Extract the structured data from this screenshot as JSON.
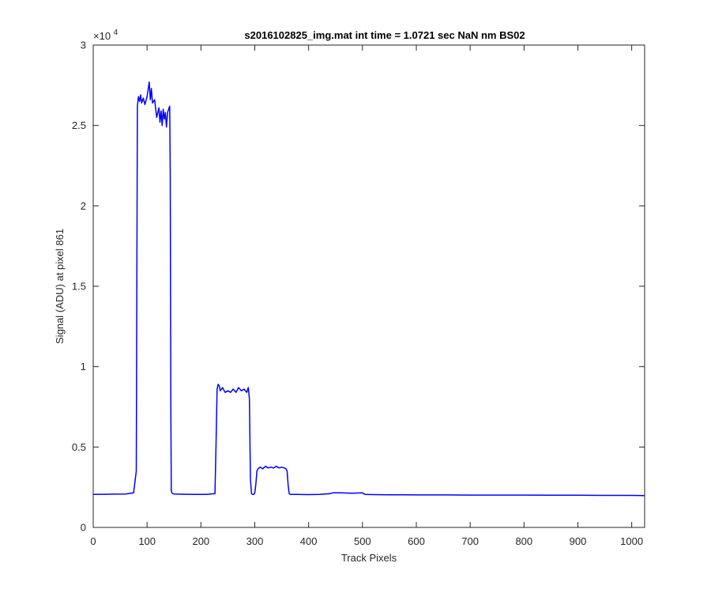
{
  "chart_data": {
    "type": "line",
    "title": "s2016102825_img.mat int time = 1.0721 sec  NaN nm BS02",
    "xlabel": "Track Pixels",
    "ylabel": "Signal (ADU) at pixel 861",
    "exponent_label": "×10",
    "exponent_power": "4",
    "xlim": [
      0,
      1024
    ],
    "ylim": [
      0,
      30000
    ],
    "x_ticks": [
      0,
      100,
      200,
      300,
      400,
      500,
      600,
      700,
      800,
      900,
      1000
    ],
    "x_tick_labels": [
      "0",
      "100",
      "200",
      "300",
      "400",
      "500",
      "600",
      "700",
      "800",
      "900",
      "1000"
    ],
    "y_ticks": [
      0,
      5000,
      10000,
      15000,
      20000,
      25000,
      30000
    ],
    "y_tick_labels": [
      "0",
      "0.5",
      "1",
      "1.5",
      "2",
      "2.5",
      "3"
    ],
    "grid": false,
    "line_color": "#0000ff",
    "series": [
      {
        "x": [
          0,
          20,
          40,
          60,
          75,
          80,
          82,
          84,
          86,
          88,
          90,
          93,
          96,
          100,
          104,
          106,
          108,
          110,
          114,
          118,
          122,
          124,
          126,
          128,
          130,
          132,
          134,
          136,
          138,
          140,
          142,
          143,
          144,
          145,
          146,
          148,
          150,
          170,
          190,
          210,
          226,
          228,
          230,
          232,
          234,
          236,
          240,
          245,
          250,
          255,
          260,
          265,
          270,
          275,
          280,
          285,
          288,
          290,
          292,
          294,
          296,
          298,
          300,
          302,
          304,
          306,
          308,
          310,
          315,
          320,
          325,
          330,
          335,
          340,
          345,
          350,
          355,
          358,
          360,
          362,
          364,
          366,
          370,
          380,
          400,
          420,
          440,
          445,
          460,
          480,
          500,
          505,
          520,
          550,
          600,
          650,
          700,
          750,
          800,
          850,
          900,
          950,
          1000,
          1024
        ],
        "y": [
          2050,
          2060,
          2070,
          2080,
          2150,
          3500,
          26200,
          26800,
          26500,
          26900,
          26400,
          26700,
          26300,
          26800,
          27700,
          26600,
          27300,
          26400,
          26600,
          25500,
          26100,
          25200,
          25900,
          25000,
          26000,
          25400,
          25800,
          24900,
          25800,
          26000,
          26200,
          22000,
          8000,
          2300,
          2150,
          2100,
          2080,
          2060,
          2050,
          2050,
          2100,
          5000,
          8600,
          8900,
          8800,
          8500,
          8700,
          8400,
          8500,
          8400,
          8600,
          8400,
          8700,
          8500,
          8600,
          8400,
          8700,
          8000,
          3000,
          2100,
          2050,
          2050,
          2150,
          2700,
          3500,
          3650,
          3700,
          3750,
          3650,
          3800,
          3700,
          3750,
          3700,
          3800,
          3700,
          3750,
          3700,
          3650,
          3500,
          2600,
          2100,
          2050,
          2050,
          2050,
          2040,
          2050,
          2100,
          2150,
          2150,
          2130,
          2150,
          2050,
          2040,
          2030,
          2020,
          2020,
          2010,
          2010,
          2010,
          2000,
          2000,
          1990,
          1990,
          1980
        ]
      }
    ]
  }
}
